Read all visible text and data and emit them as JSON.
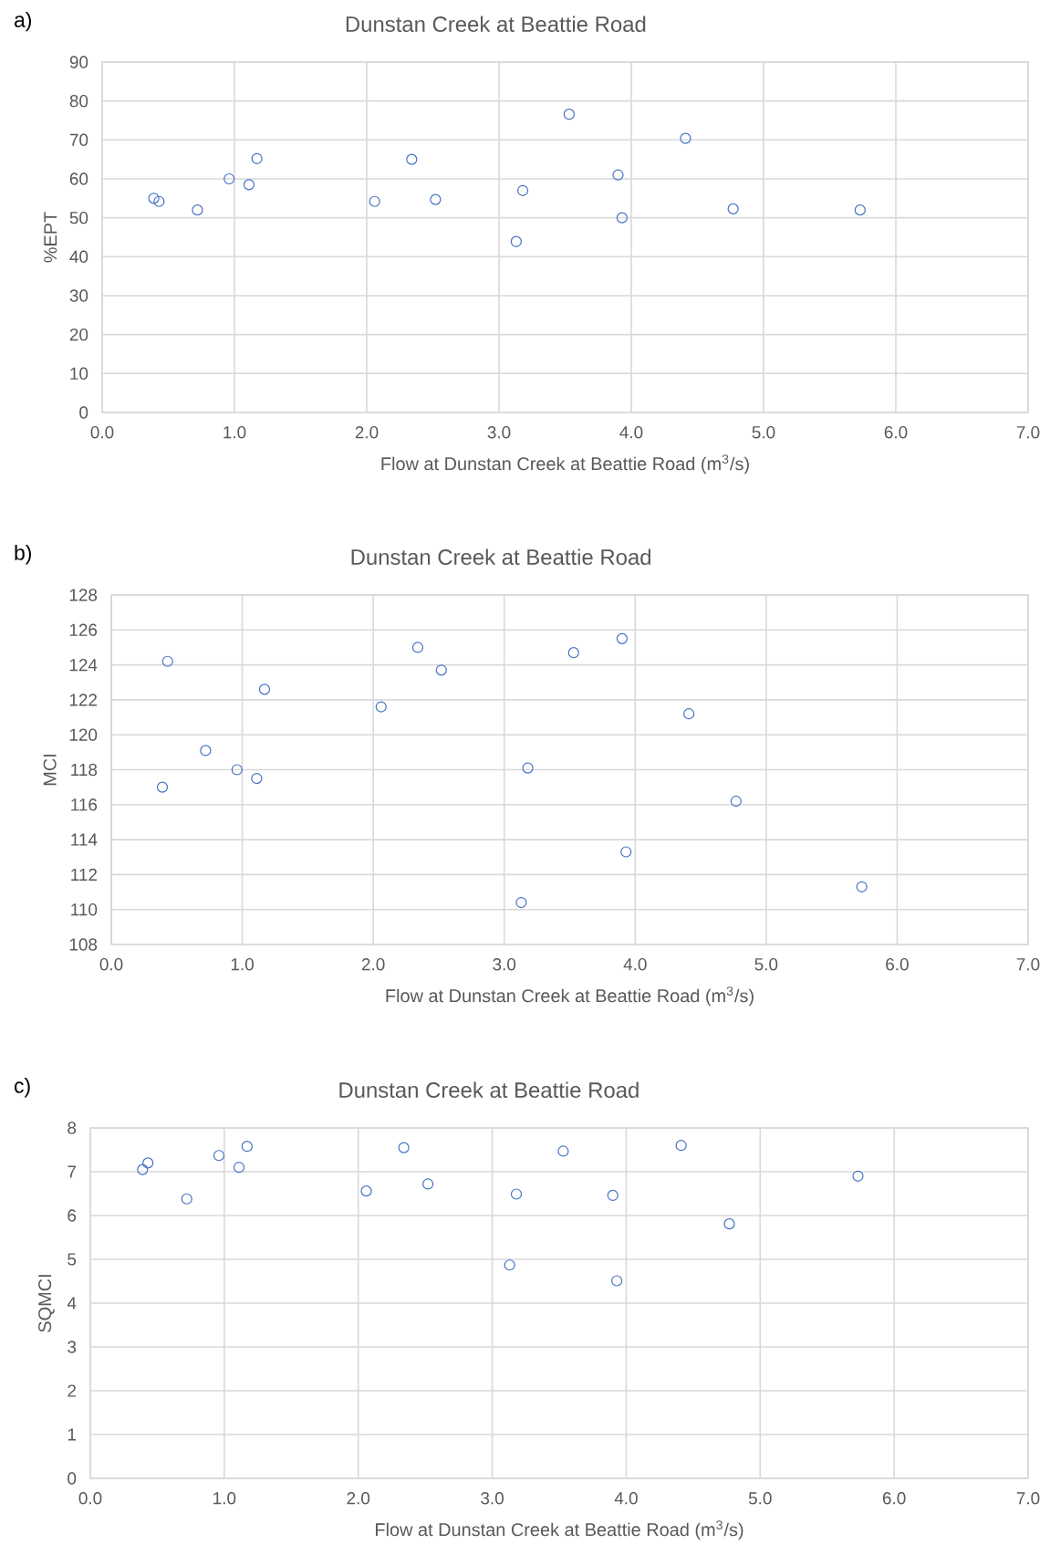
{
  "chart_data": [
    {
      "type": "scatter",
      "title": "Dunstan Creek at Beattie Road",
      "xlabel": "Flow at Dunstan Creek at Beattie Road (m$^{3}$/s)",
      "ylabel": "%EPT",
      "annotations": [
        "a)"
      ],
      "x": [
        0.39,
        0.43,
        0.72,
        0.96,
        1.11,
        1.17,
        2.06,
        2.34,
        2.52,
        3.13,
        3.18,
        3.53,
        3.9,
        3.93,
        4.41,
        4.77,
        5.73
      ],
      "values": [
        55,
        54.2,
        52,
        60,
        58.5,
        65.2,
        54.2,
        65,
        54.7,
        43.9,
        57,
        76.6,
        61,
        50,
        70.4,
        52.3,
        52
      ],
      "color": "#4472c4",
      "marker": "circle",
      "grid": true,
      "xlim": [
        0,
        7
      ],
      "xticks": [
        {
          "value": 0,
          "label": "0.0"
        },
        {
          "value": 1,
          "label": "1.0"
        },
        {
          "value": 2,
          "label": "2.0"
        },
        {
          "value": 3,
          "label": "3.0"
        },
        {
          "value": 4,
          "label": "4.0"
        },
        {
          "value": 5,
          "label": "5.0"
        },
        {
          "value": 6,
          "label": "6.0"
        },
        {
          "value": 7,
          "label": "7.0"
        }
      ],
      "ylim": [
        0,
        90
      ],
      "yticks": [
        0,
        10,
        20,
        30,
        40,
        50,
        60,
        70,
        80,
        90
      ]
    },
    {
      "type": "scatter",
      "title": "Dunstan Creek at Beattie Road",
      "xlabel": "Flow at Dunstan Creek at Beattie Road (m$^{3}$/s)",
      "ylabel": "MCI",
      "annotations": [
        "b)"
      ],
      "x": [
        0.39,
        0.43,
        0.72,
        0.96,
        1.11,
        1.17,
        2.06,
        2.34,
        2.52,
        3.13,
        3.18,
        3.53,
        3.9,
        3.93,
        4.41,
        4.77,
        5.73
      ],
      "values": [
        117.0,
        124.2,
        119.1,
        118.0,
        117.5,
        122.6,
        121.6,
        125.0,
        123.7,
        110.4,
        118.1,
        124.7,
        125.5,
        113.3,
        121.2,
        116.2,
        111.3
      ],
      "color": "#4472c4",
      "marker": "circle",
      "grid": true,
      "xlim": [
        0,
        7
      ],
      "xticks": [
        {
          "value": 0,
          "label": "0.0"
        },
        {
          "value": 1,
          "label": "1.0"
        },
        {
          "value": 2,
          "label": "2.0"
        },
        {
          "value": 3,
          "label": "3.0"
        },
        {
          "value": 4,
          "label": "4.0"
        },
        {
          "value": 5,
          "label": "5.0"
        },
        {
          "value": 6,
          "label": "6.0"
        },
        {
          "value": 7,
          "label": "7.0"
        }
      ],
      "ylim": [
        108,
        128
      ],
      "yticks": [
        108,
        110,
        112,
        114,
        116,
        118,
        120,
        122,
        124,
        126,
        128
      ]
    },
    {
      "type": "scatter",
      "title": "Dunstan Creek at Beattie Road",
      "xlabel": "Flow at Dunstan Creek at Beattie Road (m$^{3}$/s)",
      "ylabel": "SQMCI",
      "annotations": [
        "c)"
      ],
      "x": [
        0.39,
        0.43,
        0.72,
        0.96,
        1.11,
        1.17,
        2.06,
        2.34,
        2.52,
        3.13,
        3.18,
        3.53,
        3.9,
        3.93,
        4.41,
        4.77,
        5.73
      ],
      "values": [
        7.05,
        7.2,
        6.38,
        7.37,
        7.1,
        7.58,
        6.56,
        7.55,
        6.72,
        4.87,
        6.49,
        7.47,
        6.46,
        4.51,
        7.6,
        5.81,
        6.9
      ],
      "color": "#4472c4",
      "marker": "circle",
      "grid": true,
      "xlim": [
        0,
        7
      ],
      "xticks": [
        {
          "value": 0,
          "label": "0.0"
        },
        {
          "value": 1,
          "label": "1.0"
        },
        {
          "value": 2,
          "label": "2.0"
        },
        {
          "value": 3,
          "label": "3.0"
        },
        {
          "value": 4,
          "label": "4.0"
        },
        {
          "value": 5,
          "label": "5.0"
        },
        {
          "value": 6,
          "label": "6.0"
        },
        {
          "value": 7,
          "label": "7.0"
        }
      ],
      "ylim": [
        0,
        8
      ],
      "yticks": [
        0,
        1,
        2,
        3,
        4,
        5,
        6,
        7,
        8
      ]
    }
  ]
}
